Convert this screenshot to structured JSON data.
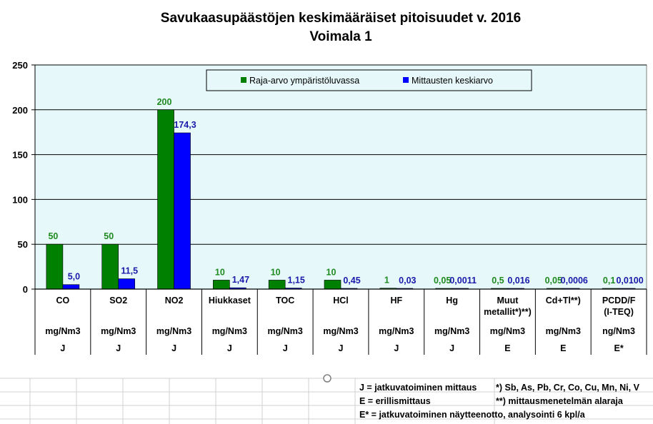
{
  "chart_data": {
    "type": "bar",
    "title": "Savukaasupäästöjen keskimääräiset pitoisuudet v. 2016",
    "subtitle": "Voimala 1",
    "ylim": [
      0,
      250
    ],
    "yticks": [
      0,
      50,
      100,
      150,
      200,
      250
    ],
    "grid": true,
    "legend_position": "top",
    "categories": [
      {
        "name": [
          "CO"
        ],
        "unit": "mg/Nm3",
        "type": "J"
      },
      {
        "name": [
          "SO2"
        ],
        "unit": "mg/Nm3",
        "type": "J"
      },
      {
        "name": [
          "NO2"
        ],
        "unit": "mg/Nm3",
        "type": "J"
      },
      {
        "name": [
          "Hiukkaset"
        ],
        "unit": "mg/Nm3",
        "type": "J"
      },
      {
        "name": [
          "TOC"
        ],
        "unit": "mg/Nm3",
        "type": "J"
      },
      {
        "name": [
          "HCl"
        ],
        "unit": "mg/Nm3",
        "type": "J"
      },
      {
        "name": [
          "HF"
        ],
        "unit": "mg/Nm3",
        "type": "J"
      },
      {
        "name": [
          "Hg"
        ],
        "unit": "mg/Nm3",
        "type": "J"
      },
      {
        "name": [
          "Muut",
          "metallit*)**)"
        ],
        "unit": "mg/Nm3",
        "type": "E"
      },
      {
        "name": [
          "Cd+Tl**)"
        ],
        "unit": "mg/Nm3",
        "type": "E"
      },
      {
        "name": [
          "PCDD/F",
          "(I-TEQ)"
        ],
        "unit": "ng/Nm3",
        "type": "E*"
      }
    ],
    "series": [
      {
        "name": "Raja-arvo ympäristöluvassa",
        "color": "#008000",
        "label_color": "#1f8a1f",
        "values": [
          50,
          50,
          200,
          10,
          10,
          10,
          1,
          0.05,
          0.5,
          0.05,
          0.1
        ],
        "labels": [
          "50",
          "50",
          "200",
          "10",
          "10",
          "10",
          "1",
          "0,05",
          "0,5",
          "0,05",
          "0,1"
        ]
      },
      {
        "name": "Mittausten keskiarvo",
        "color": "#0000ff",
        "label_color": "#1a1aaa",
        "values": [
          5.0,
          11.5,
          174.3,
          1.47,
          1.15,
          0.45,
          0.03,
          0.0011,
          0.016,
          0.0006,
          0.01
        ],
        "labels": [
          "5,0",
          "11,5",
          "174,3",
          "1,47",
          "1,15",
          "0,45",
          "0,03",
          "0,0011",
          "0,016",
          "0,0006",
          "0,0100"
        ]
      }
    ]
  },
  "notes": [
    "J = jatkuvatoiminen mittaus",
    "*) Sb, As, Pb, Cr, Co, Cu, Mn, Ni, V",
    "E = erillismittaus",
    "**) mittausmenetelmän alaraja",
    "E* = jatkuvatoiminen näytteenotto, analysointi 6 kpl/a"
  ],
  "colors": {
    "plot_background": "#e6f8fa",
    "gridline": "#000000",
    "sheet_grid": "#d0d0d0"
  }
}
